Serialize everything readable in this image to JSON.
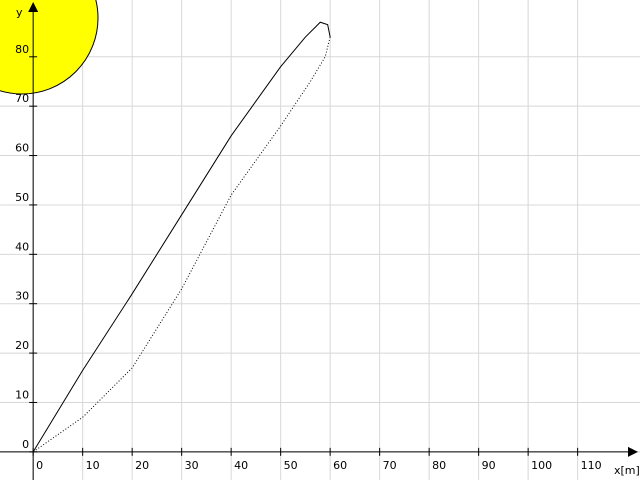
{
  "chart_data": {
    "type": "line",
    "xlabel": "x[m]",
    "ylabel": "y",
    "series": [
      {
        "color": "#000000",
        "style": "solid",
        "x": [
          0,
          10,
          20,
          30,
          40,
          50,
          55,
          58,
          59.5,
          60
        ],
        "values": [
          0,
          16.5,
          32,
          48,
          64,
          78,
          84,
          87,
          86.5,
          84
        ]
      },
      {
        "color": "#000000",
        "style": "dotted",
        "x": [
          60,
          59,
          56,
          50,
          40,
          30,
          20,
          10,
          0
        ],
        "values": [
          84,
          80,
          75,
          66,
          52,
          33,
          17,
          7,
          0
        ]
      }
    ],
    "xlim": [
      -6.7,
      122.6
    ],
    "ylim": [
      -5.7,
      91.5
    ],
    "xticks": [
      0,
      10,
      20,
      30,
      40,
      50,
      60,
      70,
      80,
      90,
      100,
      110
    ],
    "yticks": [
      0,
      10,
      20,
      30,
      40,
      50,
      60,
      70,
      80
    ],
    "grid": true
  }
}
